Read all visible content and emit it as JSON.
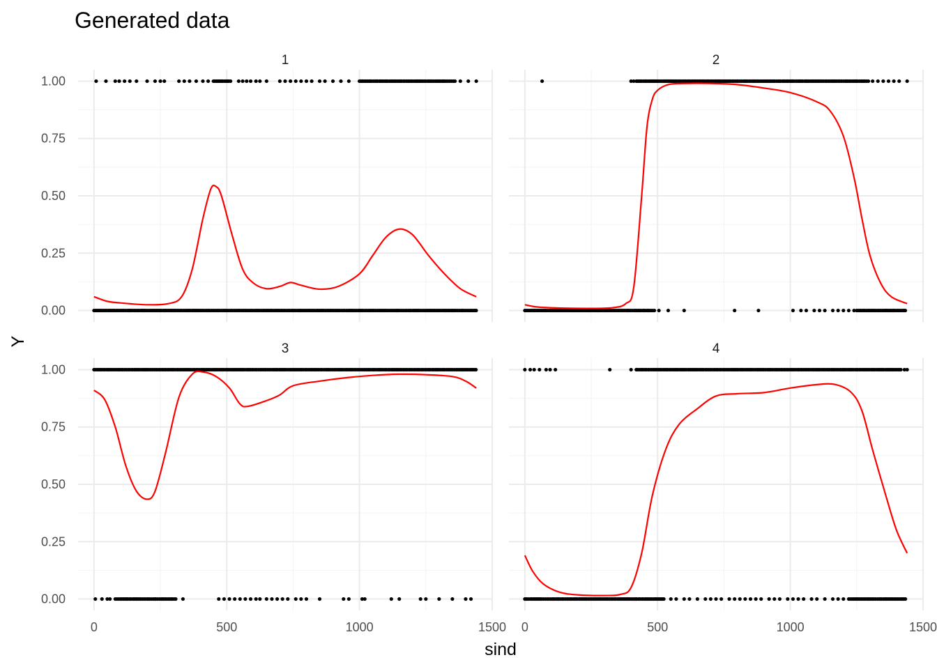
{
  "chart_data": {
    "type": "scatter",
    "title": "Generated data",
    "xlabel": "sind",
    "ylabel": "Y",
    "xlim": [
      -60,
      1500
    ],
    "ylim": [
      -0.05,
      1.05
    ],
    "x_ticks": [
      0,
      500,
      1000,
      1500
    ],
    "y_ticks": [
      0.0,
      0.25,
      0.5,
      0.75,
      1.0
    ],
    "x_tick_labels": [
      "0",
      "500",
      "1000",
      "1500"
    ],
    "y_tick_labels": [
      "0.00",
      "0.25",
      "0.50",
      "0.75",
      "1.00"
    ],
    "grid": true,
    "colors": {
      "points": "#000000",
      "smooth": "#ff0000"
    },
    "panels": [
      {
        "label": "1",
        "points_y1_dense": [
          [
            450,
            520
          ],
          [
            1000,
            1360
          ]
        ],
        "points_y1_sparse": [
          8,
          45,
          80,
          95,
          115,
          135,
          160,
          200,
          230,
          250,
          265,
          320,
          340,
          360,
          385,
          410,
          430,
          545,
          560,
          575,
          590,
          610,
          625,
          650,
          700,
          720,
          740,
          760,
          780,
          800,
          820,
          850,
          870,
          900,
          930,
          960,
          1380,
          1410,
          1440
        ],
        "points_y0_dense": [
          [
            0,
            1440
          ]
        ],
        "points_y0_sparse": [],
        "smooth": [
          [
            0,
            0.06
          ],
          [
            50,
            0.04
          ],
          [
            100,
            0.033
          ],
          [
            200,
            0.025
          ],
          [
            280,
            0.03
          ],
          [
            330,
            0.06
          ],
          [
            370,
            0.18
          ],
          [
            410,
            0.4
          ],
          [
            440,
            0.53
          ],
          [
            460,
            0.54
          ],
          [
            480,
            0.5
          ],
          [
            520,
            0.33
          ],
          [
            560,
            0.18
          ],
          [
            600,
            0.12
          ],
          [
            650,
            0.095
          ],
          [
            700,
            0.105
          ],
          [
            740,
            0.122
          ],
          [
            780,
            0.11
          ],
          [
            850,
            0.093
          ],
          [
            920,
            0.105
          ],
          [
            1000,
            0.16
          ],
          [
            1050,
            0.24
          ],
          [
            1100,
            0.32
          ],
          [
            1150,
            0.355
          ],
          [
            1200,
            0.33
          ],
          [
            1260,
            0.24
          ],
          [
            1320,
            0.16
          ],
          [
            1380,
            0.095
          ],
          [
            1440,
            0.06
          ]
        ]
      },
      {
        "label": "2",
        "points_y1_dense": [
          [
            420,
            1300
          ]
        ],
        "points_y1_sparse": [
          65,
          400,
          410,
          1310,
          1330,
          1350,
          1370,
          1390,
          1410,
          1440
        ],
        "points_y0_dense": [
          [
            0,
            490
          ],
          [
            1250,
            1440
          ]
        ],
        "points_y0_sparse": [
          505,
          540,
          600,
          790,
          880,
          1010,
          1040,
          1060,
          1090,
          1110,
          1130,
          1160,
          1180,
          1200,
          1220,
          1240
        ],
        "smooth": [
          [
            0,
            0.025
          ],
          [
            50,
            0.015
          ],
          [
            150,
            0.01
          ],
          [
            250,
            0.009
          ],
          [
            330,
            0.012
          ],
          [
            380,
            0.03
          ],
          [
            410,
            0.1
          ],
          [
            440,
            0.5
          ],
          [
            460,
            0.8
          ],
          [
            480,
            0.92
          ],
          [
            500,
            0.96
          ],
          [
            540,
            0.985
          ],
          [
            600,
            0.99
          ],
          [
            700,
            0.99
          ],
          [
            800,
            0.985
          ],
          [
            900,
            0.97
          ],
          [
            1000,
            0.95
          ],
          [
            1100,
            0.91
          ],
          [
            1150,
            0.87
          ],
          [
            1200,
            0.76
          ],
          [
            1240,
            0.58
          ],
          [
            1270,
            0.4
          ],
          [
            1300,
            0.24
          ],
          [
            1340,
            0.12
          ],
          [
            1380,
            0.06
          ],
          [
            1440,
            0.03
          ]
        ]
      },
      {
        "label": "3",
        "points_y1_dense": [
          [
            0,
            1440
          ]
        ],
        "points_y1_sparse": [],
        "points_y0_dense": [
          [
            80,
            310
          ]
        ],
        "points_y0_sparse": [
          5,
          30,
          50,
          60,
          335,
          470,
          490,
          510,
          530,
          550,
          570,
          590,
          610,
          625,
          650,
          670,
          690,
          710,
          730,
          760,
          780,
          800,
          850,
          940,
          960,
          1010,
          1020,
          1120,
          1150,
          1230,
          1250,
          1300,
          1350,
          1400,
          1420
        ],
        "smooth": [
          [
            0,
            0.91
          ],
          [
            40,
            0.87
          ],
          [
            80,
            0.75
          ],
          [
            120,
            0.58
          ],
          [
            160,
            0.47
          ],
          [
            200,
            0.435
          ],
          [
            230,
            0.47
          ],
          [
            270,
            0.64
          ],
          [
            320,
            0.88
          ],
          [
            370,
            0.98
          ],
          [
            410,
            0.99
          ],
          [
            460,
            0.97
          ],
          [
            510,
            0.92
          ],
          [
            550,
            0.85
          ],
          [
            580,
            0.84
          ],
          [
            650,
            0.865
          ],
          [
            700,
            0.89
          ],
          [
            750,
            0.93
          ],
          [
            850,
            0.95
          ],
          [
            950,
            0.965
          ],
          [
            1050,
            0.975
          ],
          [
            1150,
            0.98
          ],
          [
            1250,
            0.978
          ],
          [
            1350,
            0.97
          ],
          [
            1400,
            0.95
          ],
          [
            1440,
            0.92
          ]
        ]
      },
      {
        "label": "4",
        "points_y1_dense": [
          [
            420,
            1420
          ]
        ],
        "points_y1_sparse": [
          0,
          20,
          35,
          55,
          80,
          95,
          115,
          320,
          400,
          420,
          1430,
          1440
        ],
        "points_y0_dense": [
          [
            0,
            530
          ],
          [
            1220,
            1440
          ]
        ],
        "points_y0_sparse": [
          550,
          570,
          600,
          620,
          650,
          680,
          700,
          720,
          740,
          770,
          790,
          810,
          830,
          850,
          870,
          890,
          920,
          940,
          960,
          990,
          1010,
          1030,
          1050,
          1080,
          1100,
          1130,
          1160,
          1180,
          1200
        ],
        "smooth": [
          [
            0,
            0.19
          ],
          [
            30,
            0.12
          ],
          [
            70,
            0.065
          ],
          [
            130,
            0.03
          ],
          [
            200,
            0.018
          ],
          [
            300,
            0.015
          ],
          [
            360,
            0.02
          ],
          [
            400,
            0.05
          ],
          [
            440,
            0.2
          ],
          [
            480,
            0.45
          ],
          [
            530,
            0.65
          ],
          [
            580,
            0.76
          ],
          [
            650,
            0.83
          ],
          [
            720,
            0.885
          ],
          [
            800,
            0.895
          ],
          [
            900,
            0.9
          ],
          [
            1000,
            0.92
          ],
          [
            1100,
            0.935
          ],
          [
            1170,
            0.935
          ],
          [
            1230,
            0.9
          ],
          [
            1270,
            0.82
          ],
          [
            1310,
            0.65
          ],
          [
            1360,
            0.45
          ],
          [
            1400,
            0.3
          ],
          [
            1440,
            0.2
          ]
        ]
      }
    ]
  }
}
